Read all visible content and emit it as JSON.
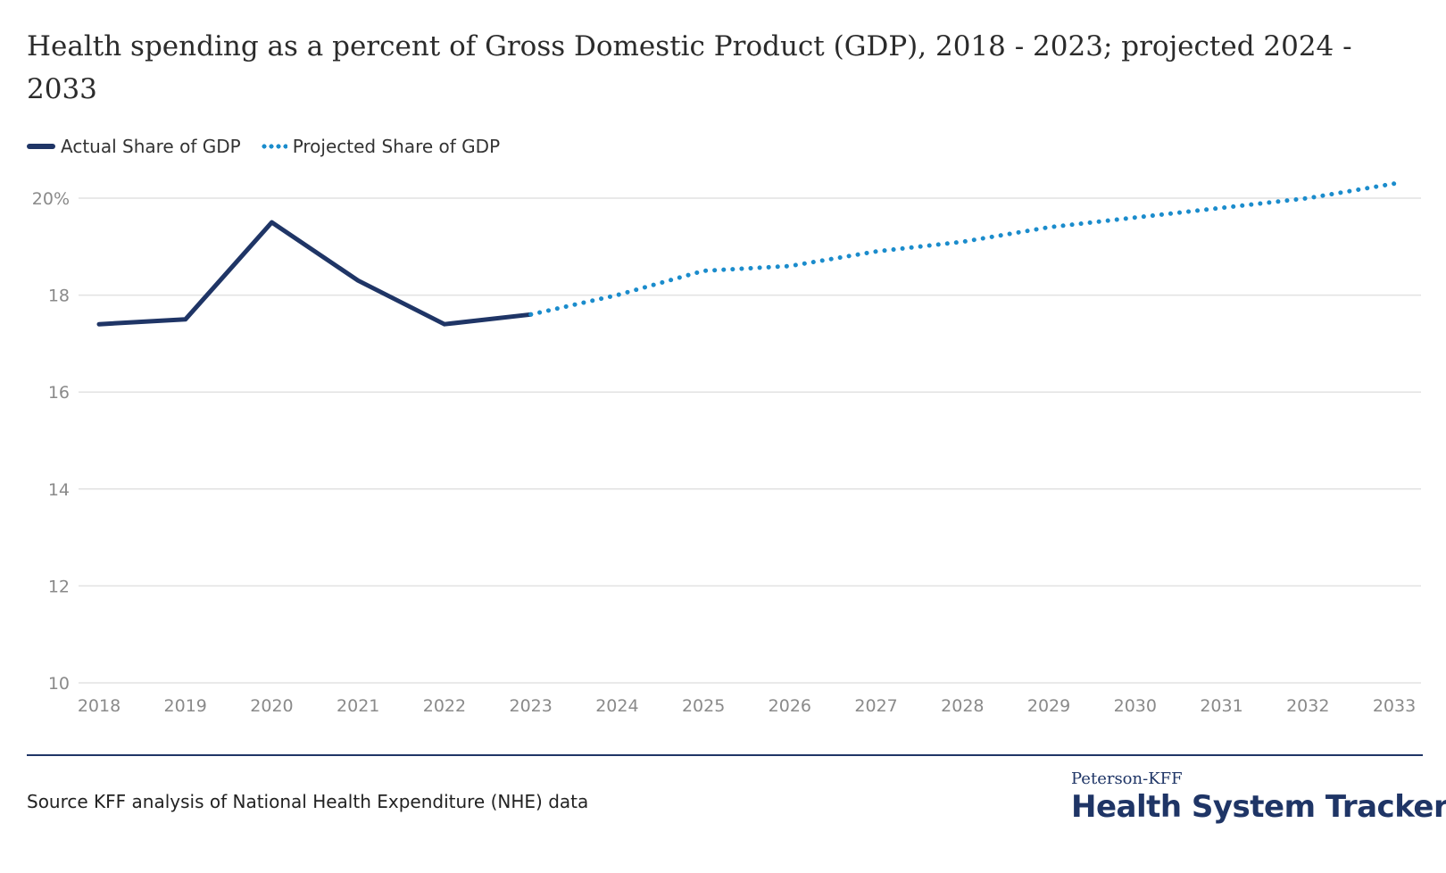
{
  "title": "Health spending as a percent of Gross Domestic Product (GDP), 2018 - 2023; projected 2024 - 2033",
  "legend": {
    "actual": "Actual Share of GDP",
    "projected": "Projected Share of GDP"
  },
  "source": "Source KFF analysis of National Health Expenditure (NHE) data",
  "brand": {
    "small": "Peterson-KFF",
    "big": "Health System Tracker"
  },
  "colors": {
    "actual": "#1f3566",
    "projected": "#1b8ccc",
    "grid": "#e2e2e2",
    "tick_text": "#8a8a8a"
  },
  "chart_data": {
    "type": "line",
    "title": "Health spending as a percent of Gross Domestic Product (GDP), 2018 - 2023; projected 2024 - 2033",
    "xlabel": "",
    "ylabel": "",
    "x": [
      2018,
      2019,
      2020,
      2021,
      2022,
      2023,
      2024,
      2025,
      2026,
      2027,
      2028,
      2029,
      2030,
      2031,
      2032,
      2033
    ],
    "y_ticks": [
      10,
      12,
      14,
      16,
      18,
      20
    ],
    "y_tick_labels": [
      "10",
      "12",
      "14",
      "16",
      "18",
      "20%"
    ],
    "ylim": [
      10,
      20
    ],
    "grid": true,
    "legend_position": "top-left",
    "series": [
      {
        "name": "Actual Share of GDP",
        "style": "solid",
        "points": [
          [
            2018,
            17.4
          ],
          [
            2019,
            17.5
          ],
          [
            2020,
            19.5
          ],
          [
            2021,
            18.3
          ],
          [
            2022,
            17.4
          ],
          [
            2023,
            17.6
          ]
        ]
      },
      {
        "name": "Projected Share of GDP",
        "style": "dotted",
        "points": [
          [
            2023,
            17.6
          ],
          [
            2024,
            18.0
          ],
          [
            2025,
            18.5
          ],
          [
            2026,
            18.6
          ],
          [
            2027,
            18.9
          ],
          [
            2028,
            19.1
          ],
          [
            2029,
            19.4
          ],
          [
            2030,
            19.6
          ],
          [
            2031,
            19.8
          ],
          [
            2032,
            20.0
          ],
          [
            2033,
            20.3
          ]
        ]
      }
    ]
  }
}
